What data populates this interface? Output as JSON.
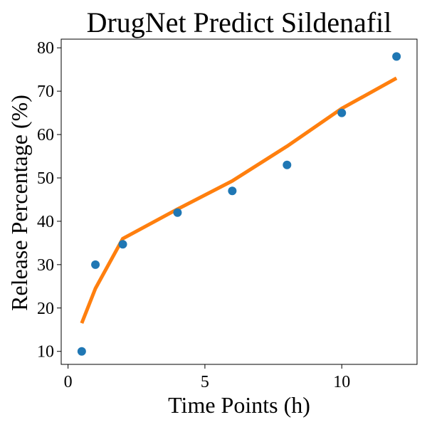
{
  "chart_data": {
    "type": "scatter+line",
    "title": "DrugNet Predict Sildenafil",
    "xlabel": "Time Points (h)",
    "ylabel": "Release Percentage (%)",
    "xlim": [
      -0.25,
      12.75
    ],
    "ylim": [
      7,
      82
    ],
    "xticks": [
      0,
      5,
      10
    ],
    "yticks": [
      10,
      20,
      30,
      40,
      50,
      60,
      70,
      80
    ],
    "grid": false,
    "series": [
      {
        "kind": "scatter",
        "color": "#1f77b4",
        "x": [
          0.5,
          1,
          2,
          4,
          6,
          8,
          10,
          12
        ],
        "y": [
          10,
          30,
          34.7,
          42,
          47,
          53,
          65,
          78
        ]
      },
      {
        "kind": "line",
        "color": "#ff7f0e",
        "x": [
          0.5,
          1,
          2,
          4,
          6,
          8,
          10,
          12
        ],
        "y": [
          16.5,
          24.5,
          36,
          42.8,
          49.3,
          57.3,
          66,
          73
        ]
      }
    ]
  }
}
